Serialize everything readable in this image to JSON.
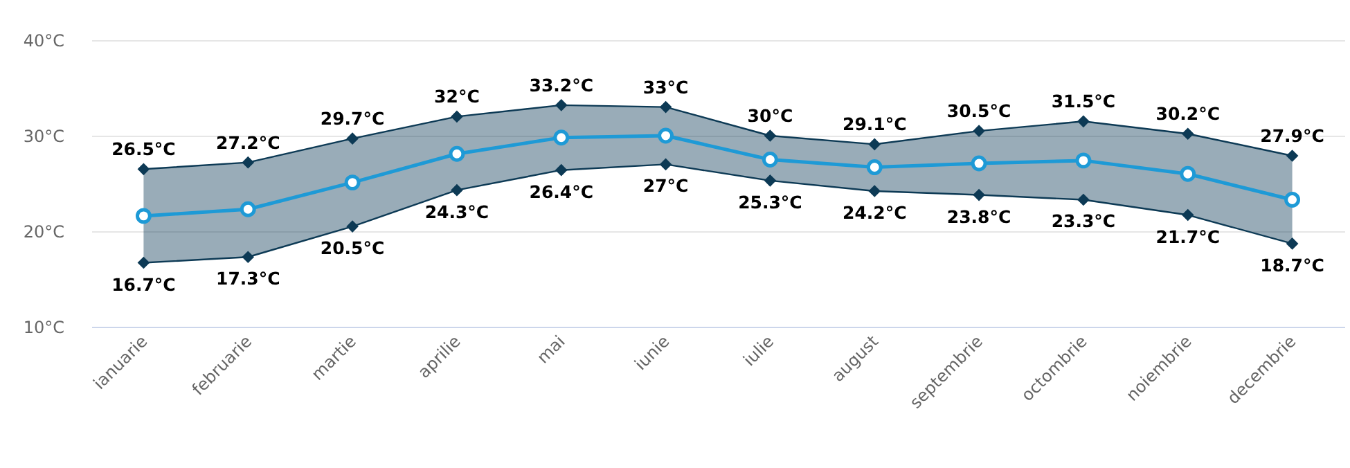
{
  "chart_data": {
    "type": "line",
    "categories": [
      "ianuarie",
      "februarie",
      "martie",
      "aprilie",
      "mai",
      "iunie",
      "iulie",
      "august",
      "septembrie",
      "octombrie",
      "noiembrie",
      "decembrie"
    ],
    "ylim": [
      10,
      40
    ],
    "yticks": [
      {
        "value": 10,
        "label": "10°C"
      },
      {
        "value": 20,
        "label": "20°C"
      },
      {
        "value": 30,
        "label": "30°C"
      },
      {
        "value": 40,
        "label": "40°C"
      }
    ],
    "grid": "y",
    "series": [
      {
        "color": "#0d3a55",
        "marker": "diamond",
        "values": [
          26.5,
          27.2,
          29.7,
          32,
          33.2,
          33,
          30,
          29.1,
          30.5,
          31.5,
          30.2,
          27.9
        ],
        "value_labels": [
          "26.5°C",
          "27.2°C",
          "29.7°C",
          "32°C",
          "33.2°C",
          "33°C",
          "30°C",
          "29.1°C",
          "30.5°C",
          "31.5°C",
          "30.2°C",
          "27.9°C"
        ]
      },
      {
        "color": "#0d3a55",
        "marker": "diamond",
        "values": [
          16.7,
          17.3,
          20.5,
          24.3,
          26.4,
          27,
          25.3,
          24.2,
          23.8,
          23.3,
          21.7,
          18.7
        ],
        "value_labels": [
          "16.7°C",
          "17.3°C",
          "20.5°C",
          "24.3°C",
          "26.4°C",
          "27°C",
          "25.3°C",
          "24.2°C",
          "23.8°C",
          "23.3°C",
          "21.7°C",
          "18.7°C"
        ]
      },
      {
        "color": "#1e9ad6",
        "marker": "circle",
        "values": [
          21.6,
          22.3,
          25.1,
          28.1,
          29.8,
          30,
          27.5,
          26.7,
          27.1,
          27.4,
          26,
          23.3
        ],
        "lower": [
          16.7,
          17.3,
          20.5,
          24.3,
          26.4,
          27,
          25.3,
          24.2,
          23.8,
          23.3,
          21.7,
          18.7
        ],
        "upper": [
          26.5,
          27.2,
          29.7,
          32,
          33.2,
          33,
          30,
          29.1,
          30.5,
          31.5,
          30.2,
          27.9
        ]
      }
    ]
  }
}
